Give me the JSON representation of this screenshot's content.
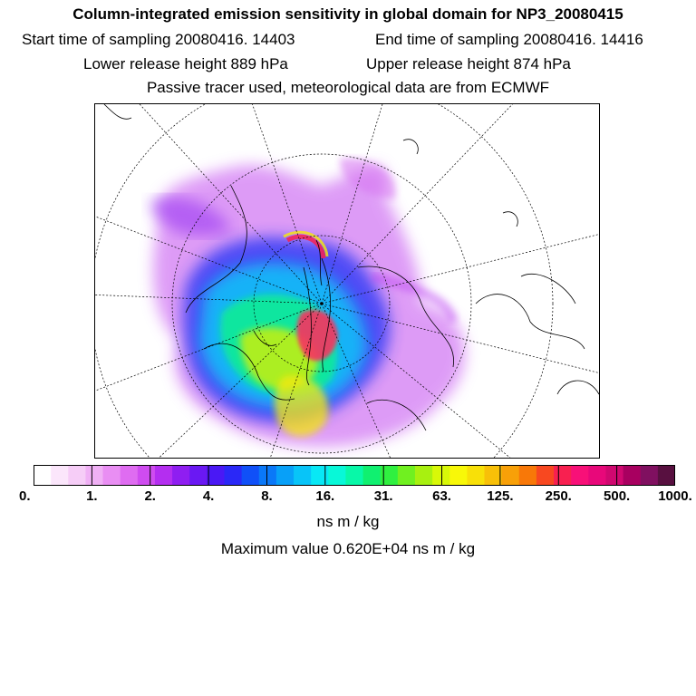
{
  "title": "Column-integrated emission sensitivity in global domain for NP3_20080415",
  "start_time_label": "Start time of sampling 20080416. 14403",
  "end_time_label": "End time of sampling 20080416. 14416",
  "lower_release_label": "Lower release height  889 hPa",
  "upper_release_label": "Upper release height  874 hPa",
  "tracer_note": "Passive tracer used, meteorological data are from ECMWF",
  "colorbar": {
    "ticks": [
      "0.",
      "1.",
      "2.",
      "4.",
      "8.",
      "16.",
      "31.",
      "63.",
      "125.",
      "250.",
      "500.",
      "1000."
    ],
    "unit": "ns m / kg",
    "colors": [
      "#ffffff",
      "#fbe6fb",
      "#f6cdf7",
      "#f0b0f5",
      "#e98ef3",
      "#df6cf1",
      "#cf4cf0",
      "#b42ef0",
      "#8f1ef1",
      "#6a18f3",
      "#4a18f5",
      "#2a28f7",
      "#1050f8",
      "#0a78f8",
      "#08a0f8",
      "#08c4f8",
      "#08e8f5",
      "#08f8d8",
      "#08f8a8",
      "#10f070",
      "#30f040",
      "#70f020",
      "#a8f010",
      "#d8f808",
      "#f8f808",
      "#f8e008",
      "#f8c008",
      "#f8a008",
      "#f87808",
      "#f84820",
      "#f82050",
      "#f81078",
      "#e8087a",
      "#d00870",
      "#a80060",
      "#801060",
      "#581040"
    ]
  },
  "maximum_label": "Maximum value  0.620E+04 ns m / kg"
}
